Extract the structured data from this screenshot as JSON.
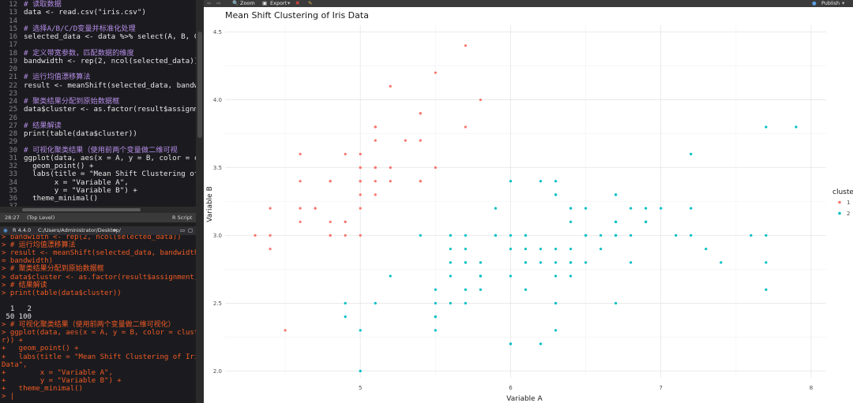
{
  "editor": {
    "lines": [
      {
        "n": "12",
        "text": "# 读取数据",
        "type": "comment"
      },
      {
        "n": "13",
        "text": "data <- read.csv(\"iris.csv\")",
        "type": "code"
      },
      {
        "n": "14",
        "text": "",
        "type": "code"
      },
      {
        "n": "15",
        "text": "# 选择A/B/C/D变量并标准化处理",
        "type": "comment"
      },
      {
        "n": "16",
        "text": "selected_data <- data %>% select(A, B, C,",
        "type": "code"
      },
      {
        "n": "17",
        "text": "",
        "type": "code"
      },
      {
        "n": "18",
        "text": "# 定义带宽参数，匹配数据的维度",
        "type": "comment"
      },
      {
        "n": "19",
        "text": "bandwidth <- rep(2, ncol(selected_data))",
        "type": "code"
      },
      {
        "n": "20",
        "text": "",
        "type": "code"
      },
      {
        "n": "21",
        "text": "# 运行均值漂移算法",
        "type": "comment"
      },
      {
        "n": "22",
        "text": "result <- meanShift(selected_data, bandwid",
        "type": "code"
      },
      {
        "n": "23",
        "text": "",
        "type": "code"
      },
      {
        "n": "24",
        "text": "# 聚类结果分配到原始数据框",
        "type": "comment"
      },
      {
        "n": "25",
        "text": "data$cluster <- as.factor(result$assignmen",
        "type": "code"
      },
      {
        "n": "26",
        "text": "",
        "type": "code"
      },
      {
        "n": "27",
        "text": "# 结果解读",
        "type": "comment"
      },
      {
        "n": "28",
        "text": "print(table(data$cluster))",
        "type": "code"
      },
      {
        "n": "29",
        "text": "",
        "type": "code"
      },
      {
        "n": "30",
        "text": "# 可视化聚类结果（使用前两个变量做二维可视",
        "type": "comment"
      },
      {
        "n": "31",
        "text": "ggplot(data, aes(x = A, y = B, color = clu",
        "type": "code"
      },
      {
        "n": "32",
        "text": "  geom_point() +",
        "type": "code"
      },
      {
        "n": "33",
        "text": "  labs(title = \"Mean Shift Clustering of I",
        "type": "code"
      },
      {
        "n": "34",
        "text": "       x = \"Variable A\",",
        "type": "code"
      },
      {
        "n": "35",
        "text": "       y = \"Variable B\") +",
        "type": "code"
      },
      {
        "n": "36",
        "text": "  theme_minimal()",
        "type": "code"
      },
      {
        "n": "37",
        "text": "",
        "type": "code"
      }
    ],
    "status": {
      "position": "28:27",
      "scope": "(Top Level)",
      "filetype": "R Script"
    }
  },
  "console": {
    "header": {
      "version": "R 4.4.0",
      "path": "C:/Users/Administrator/Desktop/"
    },
    "lines": [
      {
        "text": "> bandwidth <- rep(2, ncol(selected_data))",
        "type": "input"
      },
      {
        "text": "> # 运行均值漂移算法",
        "type": "input"
      },
      {
        "text": "> result <- meanShift(selected_data, bandwidth",
        "type": "input"
      },
      {
        "text": "= bandwidth)",
        "type": "input"
      },
      {
        "text": "> # 聚类结果分配到原始数据框",
        "type": "input"
      },
      {
        "text": "> data$cluster <- as.factor(result$assignment)",
        "type": "input"
      },
      {
        "text": "> # 结果解读",
        "type": "input"
      },
      {
        "text": "> print(table(data$cluster))",
        "type": "input"
      },
      {
        "text": "",
        "type": "output"
      },
      {
        "text": "  1   2",
        "type": "output"
      },
      {
        "text": " 50 100",
        "type": "output"
      },
      {
        "text": "> # 可视化聚类结果（使用前两个变量做二维可视化）",
        "type": "input"
      },
      {
        "text": "> ggplot(data, aes(x = A, y = B, color = cluste",
        "type": "input"
      },
      {
        "text": "r)) +",
        "type": "input"
      },
      {
        "text": "+   geom_point() +",
        "type": "input"
      },
      {
        "text": "+   labs(title = \"Mean Shift Clustering of Iris",
        "type": "input"
      },
      {
        "text": "Data\",",
        "type": "input"
      },
      {
        "text": "+        x = \"Variable A\",",
        "type": "input"
      },
      {
        "text": "+        y = \"Variable B\") +",
        "type": "input"
      },
      {
        "text": "+   theme_minimal()",
        "type": "input"
      },
      {
        "text": "> |",
        "type": "input"
      }
    ]
  },
  "plot_toolbar": {
    "zoom": "Zoom",
    "export": "Export",
    "publish": "Publish"
  },
  "colors": {
    "cluster1": "#F8766D",
    "cluster2": "#00BFC4",
    "comment": "#b48ce6",
    "console_input": "#f05a24"
  },
  "chart_data": {
    "type": "scatter",
    "title": "Mean Shift Clustering of Iris Data",
    "xlabel": "Variable A",
    "ylabel": "Variable B",
    "xlim": [
      4.3,
      8.0
    ],
    "ylim": [
      2.0,
      4.4
    ],
    "x_ticks": [
      "5",
      "6",
      "7",
      "8"
    ],
    "y_ticks": [
      "2.0",
      "2.5",
      "3.0",
      "3.5",
      "4.0",
      "4.5"
    ],
    "grid": true,
    "legend": {
      "title": "cluster",
      "position": "right",
      "entries": [
        "1",
        "2"
      ]
    },
    "series": [
      {
        "name": "1",
        "color": "#F8766D",
        "points": [
          [
            5.1,
            3.5
          ],
          [
            4.9,
            3.0
          ],
          [
            4.7,
            3.2
          ],
          [
            4.6,
            3.1
          ],
          [
            5.0,
            3.6
          ],
          [
            5.4,
            3.9
          ],
          [
            4.6,
            3.4
          ],
          [
            5.0,
            3.4
          ],
          [
            4.4,
            2.9
          ],
          [
            4.9,
            3.1
          ],
          [
            5.4,
            3.7
          ],
          [
            4.8,
            3.4
          ],
          [
            4.8,
            3.0
          ],
          [
            4.3,
            3.0
          ],
          [
            5.8,
            4.0
          ],
          [
            5.7,
            4.4
          ],
          [
            5.4,
            3.9
          ],
          [
            5.1,
            3.5
          ],
          [
            5.7,
            3.8
          ],
          [
            5.1,
            3.8
          ],
          [
            5.4,
            3.4
          ],
          [
            5.1,
            3.7
          ],
          [
            4.6,
            3.6
          ],
          [
            5.1,
            3.3
          ],
          [
            4.8,
            3.4
          ],
          [
            5.0,
            3.0
          ],
          [
            5.0,
            3.4
          ],
          [
            5.2,
            3.5
          ],
          [
            5.2,
            3.4
          ],
          [
            4.7,
            3.2
          ],
          [
            4.8,
            3.1
          ],
          [
            5.4,
            3.4
          ],
          [
            5.2,
            4.1
          ],
          [
            5.5,
            4.2
          ],
          [
            4.9,
            3.1
          ],
          [
            5.0,
            3.2
          ],
          [
            5.5,
            3.5
          ],
          [
            4.9,
            3.6
          ],
          [
            4.4,
            3.0
          ],
          [
            5.1,
            3.4
          ],
          [
            5.0,
            3.5
          ],
          [
            4.5,
            2.3
          ],
          [
            4.4,
            3.2
          ],
          [
            5.0,
            3.5
          ],
          [
            5.1,
            3.8
          ],
          [
            4.8,
            3.0
          ],
          [
            5.1,
            3.8
          ],
          [
            4.6,
            3.2
          ],
          [
            5.3,
            3.7
          ],
          [
            5.0,
            3.3
          ]
        ]
      },
      {
        "name": "2",
        "color": "#00BFC4",
        "points": [
          [
            7.0,
            3.2
          ],
          [
            6.4,
            3.2
          ],
          [
            6.9,
            3.1
          ],
          [
            5.5,
            2.3
          ],
          [
            6.5,
            2.8
          ],
          [
            5.7,
            2.8
          ],
          [
            6.3,
            3.3
          ],
          [
            4.9,
            2.4
          ],
          [
            6.6,
            2.9
          ],
          [
            5.2,
            2.7
          ],
          [
            5.0,
            2.0
          ],
          [
            5.9,
            3.0
          ],
          [
            6.0,
            2.2
          ],
          [
            6.1,
            2.9
          ],
          [
            5.6,
            2.9
          ],
          [
            6.7,
            3.1
          ],
          [
            5.6,
            3.0
          ],
          [
            5.8,
            2.7
          ],
          [
            6.2,
            2.2
          ],
          [
            5.6,
            2.5
          ],
          [
            5.9,
            3.2
          ],
          [
            6.1,
            2.8
          ],
          [
            6.3,
            2.5
          ],
          [
            6.1,
            2.8
          ],
          [
            6.4,
            2.9
          ],
          [
            6.6,
            3.0
          ],
          [
            6.8,
            2.8
          ],
          [
            6.7,
            3.0
          ],
          [
            6.0,
            2.9
          ],
          [
            5.7,
            2.6
          ],
          [
            5.5,
            2.4
          ],
          [
            5.5,
            2.4
          ],
          [
            5.8,
            2.7
          ],
          [
            6.0,
            2.7
          ],
          [
            5.4,
            3.0
          ],
          [
            6.0,
            3.4
          ],
          [
            6.7,
            3.1
          ],
          [
            6.3,
            2.3
          ],
          [
            5.6,
            3.0
          ],
          [
            5.5,
            2.5
          ],
          [
            5.5,
            2.6
          ],
          [
            6.1,
            3.0
          ],
          [
            5.8,
            2.6
          ],
          [
            5.0,
            2.3
          ],
          [
            5.6,
            2.7
          ],
          [
            5.7,
            3.0
          ],
          [
            5.7,
            2.9
          ],
          [
            6.2,
            2.9
          ],
          [
            5.1,
            2.5
          ],
          [
            5.7,
            2.8
          ],
          [
            6.3,
            3.3
          ],
          [
            5.8,
            2.7
          ],
          [
            7.1,
            3.0
          ],
          [
            6.3,
            2.9
          ],
          [
            6.5,
            3.0
          ],
          [
            7.6,
            3.0
          ],
          [
            4.9,
            2.5
          ],
          [
            7.3,
            2.9
          ],
          [
            6.7,
            2.5
          ],
          [
            7.2,
            3.6
          ],
          [
            6.5,
            3.2
          ],
          [
            6.4,
            2.7
          ],
          [
            6.8,
            3.0
          ],
          [
            5.7,
            2.5
          ],
          [
            5.8,
            2.8
          ],
          [
            6.4,
            3.2
          ],
          [
            6.5,
            3.0
          ],
          [
            7.7,
            3.8
          ],
          [
            7.7,
            2.6
          ],
          [
            6.0,
            2.2
          ],
          [
            6.9,
            3.2
          ],
          [
            5.6,
            2.8
          ],
          [
            7.7,
            2.8
          ],
          [
            6.3,
            2.7
          ],
          [
            6.7,
            3.3
          ],
          [
            7.2,
            3.2
          ],
          [
            6.2,
            2.8
          ],
          [
            6.1,
            3.0
          ],
          [
            6.4,
            2.8
          ],
          [
            7.2,
            3.0
          ],
          [
            7.4,
            2.8
          ],
          [
            7.9,
            3.8
          ],
          [
            6.4,
            2.8
          ],
          [
            6.3,
            2.8
          ],
          [
            6.1,
            2.6
          ],
          [
            7.7,
            3.0
          ],
          [
            6.3,
            3.4
          ],
          [
            6.4,
            3.1
          ],
          [
            6.0,
            3.0
          ],
          [
            6.9,
            3.1
          ],
          [
            6.7,
            3.1
          ],
          [
            6.9,
            3.1
          ],
          [
            5.8,
            2.7
          ],
          [
            6.8,
            3.2
          ],
          [
            6.7,
            3.3
          ],
          [
            6.7,
            3.0
          ],
          [
            6.3,
            2.5
          ],
          [
            6.5,
            3.0
          ],
          [
            6.2,
            3.4
          ],
          [
            5.9,
            3.0
          ]
        ]
      }
    ]
  }
}
